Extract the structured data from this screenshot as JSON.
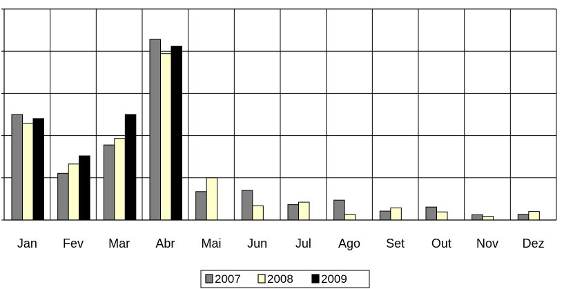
{
  "chart_data": {
    "type": "bar",
    "title": "",
    "xlabel": "",
    "ylabel": "",
    "categories": [
      "Jan",
      "Fev",
      "Mar",
      "Abr",
      "Mai",
      "Jun",
      "Jul",
      "Ago",
      "Set",
      "Out",
      "Nov",
      "Dez"
    ],
    "series": [
      {
        "name": "2007",
        "color": "#808080",
        "values": [
          2.6,
          1.15,
          1.85,
          4.45,
          0.7,
          0.73,
          0.38,
          0.49,
          0.22,
          0.32,
          0.13,
          0.14
        ]
      },
      {
        "name": "2008",
        "color": "#FFFFCC",
        "values": [
          2.38,
          1.38,
          2.01,
          4.1,
          1.04,
          0.35,
          0.44,
          0.14,
          0.3,
          0.2,
          0.09,
          0.21
        ]
      },
      {
        "name": "2009",
        "color": "#000000",
        "values": [
          2.5,
          1.58,
          2.6,
          4.28,
          null,
          null,
          null,
          null,
          null,
          null,
          null,
          null
        ]
      }
    ],
    "ylim": [
      0,
      5.2
    ],
    "grid": true,
    "legend_position": "bottom"
  }
}
